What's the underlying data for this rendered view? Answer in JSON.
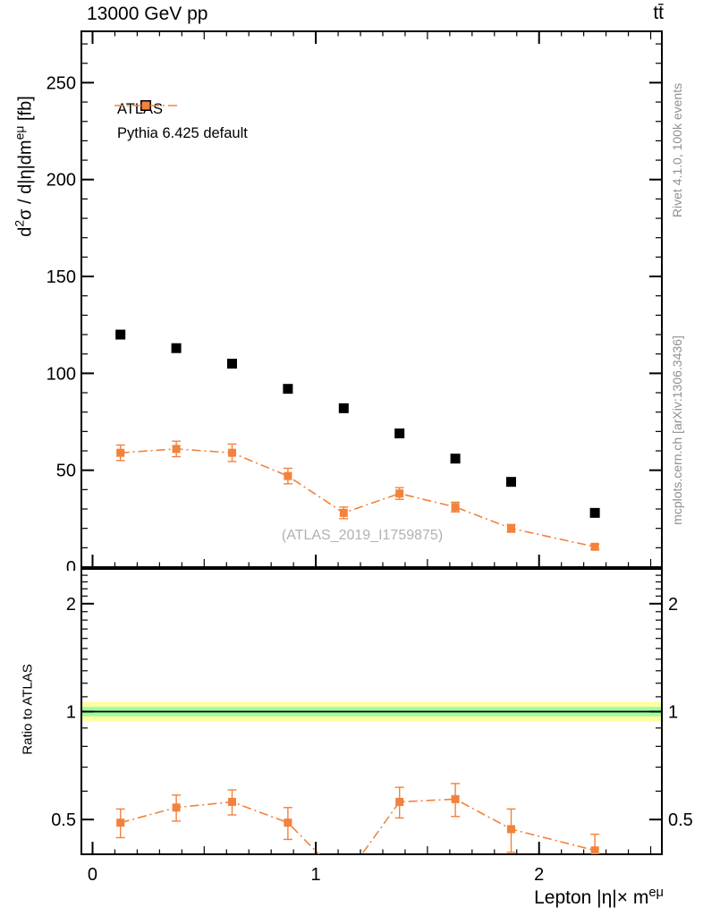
{
  "chart_data": {
    "type": "scatter",
    "title": "13000 GeV pp",
    "process_label": "tt̄",
    "watermark": "(ATLAS_2019_I1759875)",
    "side_note_top": "Rivet 4.1.0,  100k events",
    "side_note_bottom": "mcplots.cern.ch [arXiv:1306.3436]",
    "xlabel_parts": [
      {
        "t": "Lepton |η|× m"
      },
      {
        "t": "eμ",
        "sup": true
      }
    ],
    "x": [
      0.125,
      0.375,
      0.625,
      0.875,
      1.125,
      1.375,
      1.625,
      1.875,
      2.25
    ],
    "xlim": [
      -0.05,
      2.55
    ],
    "x_ticks_major": [
      0,
      1,
      2
    ],
    "x_tick_medium_step": 0.5,
    "x_tick_minor_step": 0.1,
    "main_panel": {
      "ylabel_parts": [
        {
          "t": "d"
        },
        {
          "t": "2",
          "sup": true
        },
        {
          "t": "σ / d|η|dm"
        },
        {
          "t": "eμ",
          "sup": true
        },
        {
          "t": " [fb]"
        }
      ],
      "ylim": [
        0,
        276.5
      ],
      "y_ticks_major": [
        0,
        50,
        100,
        150,
        200,
        250
      ],
      "y_tick_minor_step": 10,
      "series": [
        {
          "name": "ATLAS",
          "color": "#000000",
          "marker": "square",
          "marker_size": 11,
          "values": [
            120,
            113,
            105,
            92,
            82,
            69,
            56,
            44,
            28
          ],
          "errors": [
            2,
            2,
            2,
            2,
            2,
            1.8,
            1.5,
            1.5,
            1.2
          ]
        },
        {
          "name": "Pythia 6.425 default",
          "color": "#f2823c",
          "marker": "square",
          "marker_size": 9,
          "line": "dashdot",
          "values": [
            59,
            61,
            59,
            47,
            28,
            38,
            31,
            20,
            10.5
          ],
          "errors": [
            4,
            4,
            4.5,
            4,
            3,
            3,
            2.5,
            2,
            1.3
          ]
        }
      ]
    },
    "ratio_panel": {
      "ylabel": "Ratio to ATLAS",
      "scale": "log",
      "ylim": [
        0.4,
        2.5
      ],
      "y_ticks_major": [
        0.5,
        1,
        2
      ],
      "y_tick_minor_step": 0.1,
      "reference_line": 1,
      "band_outer": {
        "color": "#fdfda2",
        "range": [
          0.94,
          1.065
        ]
      },
      "band_inner": {
        "color": "#9ffb9f",
        "range": [
          0.97,
          1.03
        ]
      },
      "series": [
        {
          "name": "Pythia 6.425 default",
          "color": "#f2823c",
          "marker_size": 9,
          "line": "dashdot",
          "values": [
            0.49,
            0.54,
            0.56,
            0.49,
            0.34,
            0.56,
            0.57,
            0.47,
            0.41
          ],
          "errors": [
            0.045,
            0.045,
            0.045,
            0.05,
            0.04,
            0.055,
            0.06,
            0.065,
            0.045
          ]
        }
      ]
    }
  }
}
